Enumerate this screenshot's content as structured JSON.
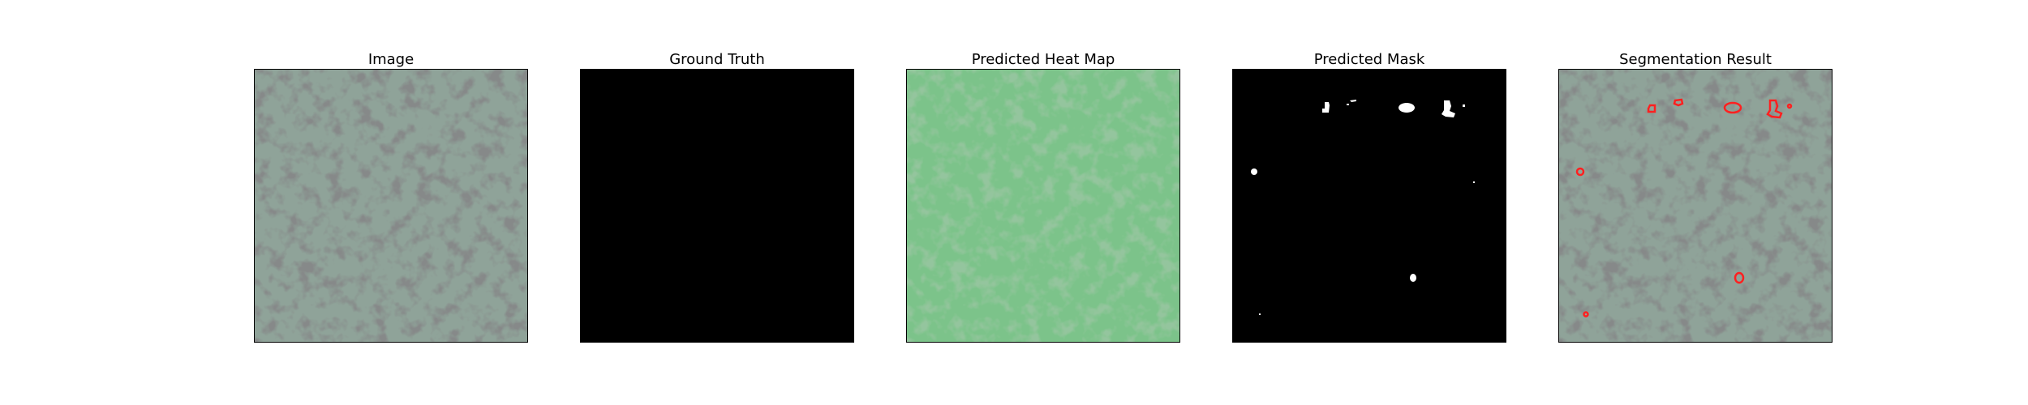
{
  "panels": [
    {
      "title": "Image"
    },
    {
      "title": "Ground Truth"
    },
    {
      "title": "Predicted Heat Map"
    },
    {
      "title": "Predicted Mask"
    },
    {
      "title": "Segmentation Result"
    }
  ],
  "colors": {
    "texture_light": "#8fa399",
    "texture_dark": "#3d403f",
    "heat_light": "#7cc38a",
    "heat_dark": "#4c8e57",
    "mask_bg": "#000000",
    "mask_fg": "#ffffff",
    "contour": "#ff2020"
  }
}
